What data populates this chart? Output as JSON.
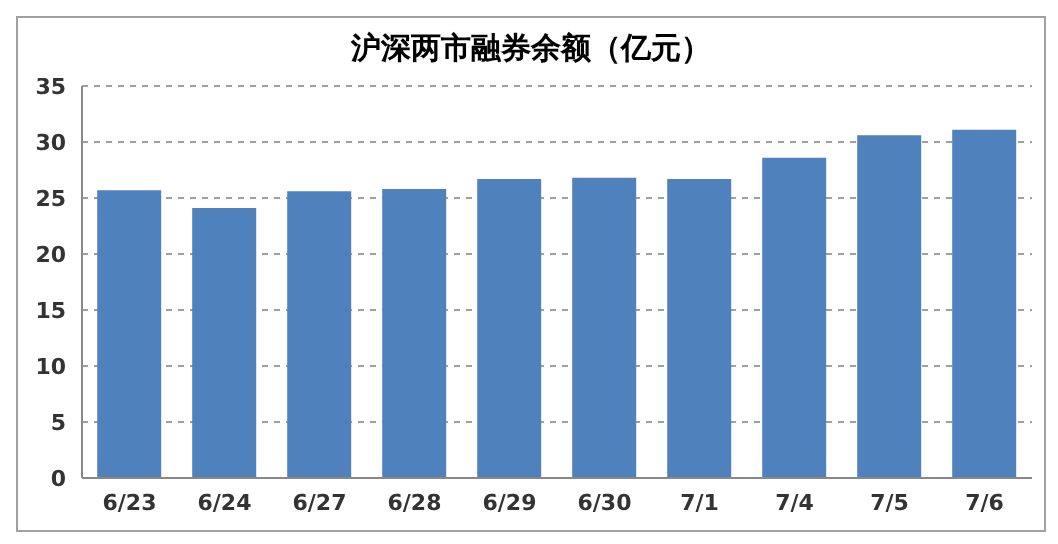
{
  "chart_data": {
    "type": "bar",
    "title": "沪深两市融券余额（亿元）",
    "categories": [
      "6/23",
      "6/24",
      "6/27",
      "6/28",
      "6/29",
      "6/30",
      "7/1",
      "7/4",
      "7/5",
      "7/6"
    ],
    "values": [
      25.7,
      24.1,
      25.6,
      25.8,
      26.7,
      26.8,
      26.7,
      28.6,
      30.6,
      31.1
    ],
    "color": "#4f81bd",
    "ylim": [
      0,
      35
    ],
    "yticks": [
      0,
      5,
      10,
      15,
      20,
      25,
      30,
      35
    ],
    "grid": "y",
    "line_style": "dashed"
  }
}
